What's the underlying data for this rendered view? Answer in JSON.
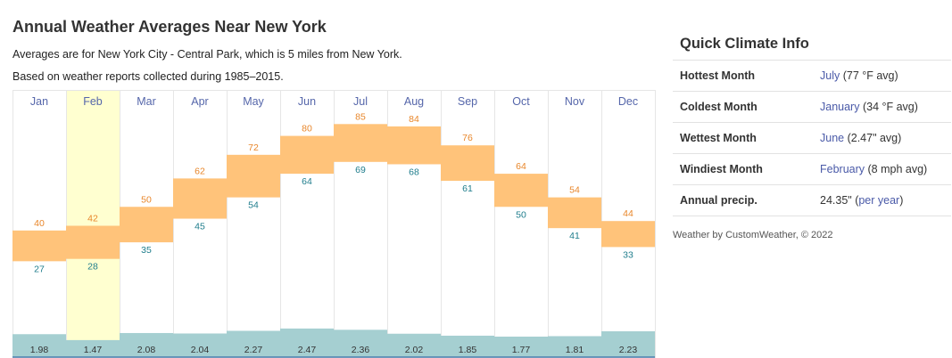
{
  "header": {
    "title": "Annual Weather Averages Near New York",
    "subtitle1": "Averages are for New York City - Central Park, which is 5 miles from New York.",
    "subtitle2": "Based on weather reports collected during 1985–2015."
  },
  "chart_data": {
    "type": "bar",
    "categories": [
      "Jan",
      "Feb",
      "Mar",
      "Apr",
      "May",
      "Jun",
      "Jul",
      "Aug",
      "Sep",
      "Oct",
      "Nov",
      "Dec"
    ],
    "series": [
      {
        "values": [
          40,
          42,
          50,
          62,
          72,
          80,
          85,
          84,
          76,
          64,
          54,
          44
        ]
      },
      {
        "values": [
          27,
          28,
          35,
          45,
          54,
          64,
          69,
          68,
          61,
          50,
          41,
          33
        ]
      },
      {
        "values": [
          1.98,
          1.47,
          2.08,
          2.04,
          2.27,
          2.47,
          2.36,
          2.02,
          1.85,
          1.77,
          1.81,
          2.23
        ]
      }
    ],
    "highlighted_category": "Feb",
    "colors": {
      "temp_band": "#ffc37a",
      "high_label": "#e8862a",
      "low_label": "#1f7d8c",
      "precip": "#a5cfd1",
      "month_label": "#5566aa",
      "highlight": "#ffffd0",
      "grid": "#e6e6e6"
    }
  },
  "quick_climate": {
    "title": "Quick Climate Info",
    "rows": [
      {
        "label": "Hottest Month",
        "link": "July",
        "value": " (77 °F avg)"
      },
      {
        "label": "Coldest Month",
        "link": "January",
        "value": " (34 °F avg)"
      },
      {
        "label": "Wettest Month",
        "link": "June",
        "value": " (2.47\" avg)"
      },
      {
        "label": "Windiest Month",
        "link": "February",
        "value": " (8 mph avg)"
      },
      {
        "label": "Annual precip.",
        "value": "24.35\" (",
        "link": "per year",
        "value_after": ")"
      }
    ],
    "footnote": "Weather by CustomWeather, © 2022"
  }
}
